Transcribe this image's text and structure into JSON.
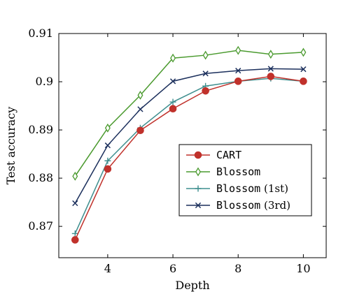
{
  "chart_data": {
    "type": "line",
    "xlabel": "Depth",
    "ylabel": "Test accuracy",
    "xlim": [
      2.5,
      10.7
    ],
    "ylim": [
      0.8635,
      0.91
    ],
    "xticks": [
      4,
      6,
      8,
      10
    ],
    "xtick_labels": [
      "4",
      "6",
      "8",
      "10"
    ],
    "yticks": [
      0.87,
      0.88,
      0.89,
      0.9,
      0.91
    ],
    "ytick_labels": [
      "0.87",
      "0.88",
      "0.89",
      "0.9",
      "0.91"
    ],
    "grid": false,
    "legend_position": "lower-right",
    "x": [
      3,
      4,
      5,
      6,
      7,
      8,
      9,
      10
    ],
    "series": [
      {
        "name": "CART",
        "label_main": "CART",
        "label_suffix": "",
        "color": "#c0312b",
        "marker": "circle",
        "values": [
          0.8672,
          0.8819,
          0.8899,
          0.8944,
          0.8981,
          0.9001,
          0.9011,
          0.9001
        ]
      },
      {
        "name": "Blossom",
        "label_main": "Blossom",
        "label_suffix": "",
        "color": "#4a9a2e",
        "marker": "diamond",
        "values": [
          0.8804,
          0.8904,
          0.8972,
          0.9049,
          0.9055,
          0.9065,
          0.9057,
          0.9061
        ]
      },
      {
        "name": "Blossom (1st)",
        "label_main": "Blossom",
        "label_suffix": " (1st)",
        "color": "#3f8f8f",
        "marker": "plus",
        "values": [
          0.8685,
          0.8836,
          0.8904,
          0.8958,
          0.8991,
          0.9001,
          0.9007,
          0.9001
        ]
      },
      {
        "name": "Blossom (3rd)",
        "label_main": "Blossom",
        "label_suffix": " (3rd)",
        "color": "#1b2f5c",
        "marker": "cross",
        "values": [
          0.8748,
          0.8868,
          0.8943,
          0.9001,
          0.9017,
          0.9023,
          0.9027,
          0.9026
        ]
      }
    ]
  }
}
